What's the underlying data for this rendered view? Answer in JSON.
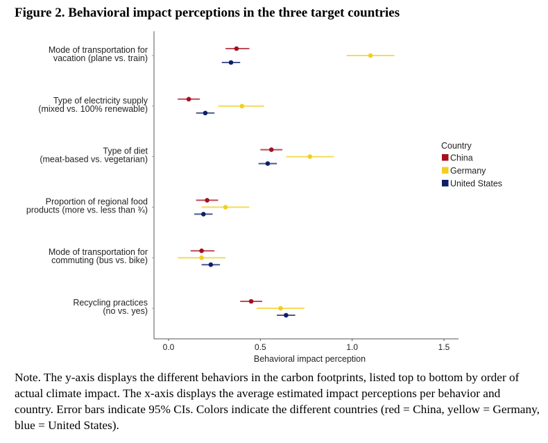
{
  "figure": {
    "title": "Figure 2. Behavioral impact perceptions in the three target countries",
    "note": "Note. The y-axis displays the different behaviors in the carbon footprints, listed top to bottom by order of actual climate impact. The x-axis displays the average estimated impact perceptions per behavior and country. Error bars indicate 95% CIs. Colors indicate the different countries (red = China, yellow = Germany, blue = United States)."
  },
  "chart_data": {
    "type": "scatter",
    "subtype": "dot-and-whisker",
    "title": "Figure 2. Behavioral impact perceptions in the three target countries",
    "xlabel": "Behavioral impact perception",
    "ylabel": "",
    "xlim": [
      -0.08,
      1.58
    ],
    "xticks": [
      0.0,
      0.5,
      1.0,
      1.5
    ],
    "xtick_labels": [
      "0.0",
      "0.5",
      "1.0",
      "1.5"
    ],
    "grid": false,
    "legend": {
      "title": "Country",
      "placement": "right"
    },
    "categories": [
      [
        "Mode of transportation for",
        "vacation (plane vs. train)"
      ],
      [
        "Type of electricity supply",
        "(mixed vs. 100% renewable)"
      ],
      [
        "Type of diet",
        "(meat-based vs. vegetarian)"
      ],
      [
        "Proportion of regional food",
        "products (more vs. less than ¾)"
      ],
      [
        "Mode of transportation for",
        "commuting (bus vs. bike)"
      ],
      [
        "Recycling practices",
        "(no vs. yes)"
      ]
    ],
    "series": [
      {
        "name": "China",
        "color": "#a50f1e",
        "values": [
          0.37,
          0.11,
          0.56,
          0.21,
          0.18,
          0.45
        ],
        "ci_low": [
          0.31,
          0.05,
          0.5,
          0.15,
          0.12,
          0.39
        ],
        "ci_high": [
          0.44,
          0.17,
          0.62,
          0.27,
          0.25,
          0.51
        ]
      },
      {
        "name": "Germany",
        "color": "#f2cf1f",
        "values": [
          1.1,
          0.4,
          0.77,
          0.31,
          0.18,
          0.61
        ],
        "ci_low": [
          0.97,
          0.27,
          0.64,
          0.18,
          0.05,
          0.48
        ],
        "ci_high": [
          1.23,
          0.52,
          0.9,
          0.44,
          0.31,
          0.74
        ]
      },
      {
        "name": "United States",
        "color": "#0d1f66",
        "values": [
          0.34,
          0.2,
          0.54,
          0.19,
          0.23,
          0.64
        ],
        "ci_low": [
          0.29,
          0.15,
          0.49,
          0.14,
          0.18,
          0.59
        ],
        "ci_high": [
          0.39,
          0.25,
          0.59,
          0.24,
          0.28,
          0.69
        ]
      }
    ]
  }
}
